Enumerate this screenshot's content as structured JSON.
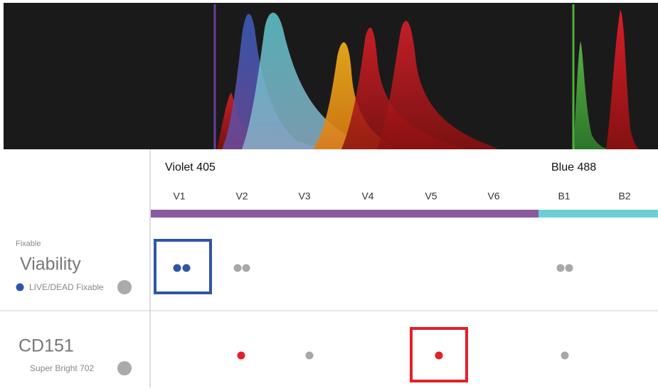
{
  "lasers": [
    {
      "name": "Violet 405",
      "channels": [
        "V1",
        "V2",
        "V3",
        "V4",
        "V5",
        "V6"
      ]
    },
    {
      "name": "Blue 488",
      "channels": [
        "B1",
        "B2"
      ]
    }
  ],
  "rows": [
    {
      "caption": "Fixable",
      "label": "Viability",
      "reagent": "LIVE/DEAD Fixable"
    },
    {
      "label": "CD151",
      "reagent": "Super Bright 702"
    }
  ]
}
